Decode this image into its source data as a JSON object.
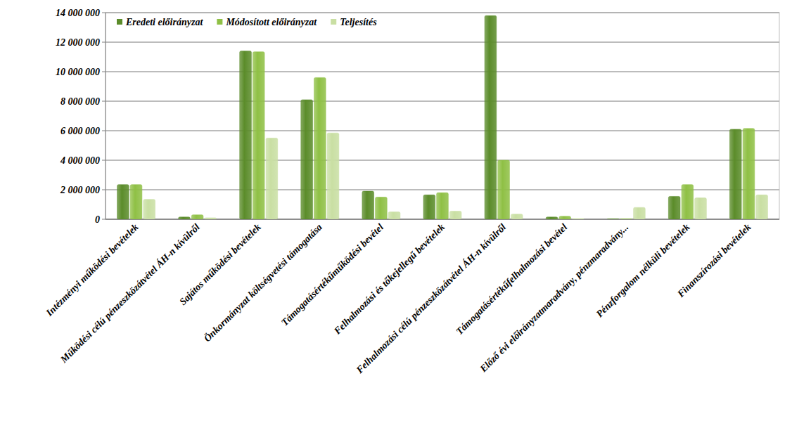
{
  "chart_data": {
    "type": "bar",
    "categories": [
      "Intézményi működési bevételek",
      "Működési célú pénzeszközátvétel ÁH-n kívülről",
      "Sajátos működési bevételek",
      "Önkormányzat költségvetési támogatása",
      "Támogatásértékűműködési bevétel",
      "Felhalmozási és tőkejellegű bevételek",
      "Felhalmozási célú pénzeszközátvétel ÁH-n kívülről",
      "Támogatásértékűfelhalmozási bevétel",
      "Előző évi előirányzatmaradvány, pénzmaradvány...",
      "Pénzforgalom nélküli bevételek",
      "Finanszírozási bevételek"
    ],
    "series": [
      {
        "name": "Eredeti előirányzat",
        "color": "#5b8c2a",
        "values": [
          2350000,
          150000,
          11400000,
          8100000,
          1900000,
          1650000,
          13800000,
          150000,
          30000,
          1550000,
          6100000
        ]
      },
      {
        "name": "Módosított előirányzat",
        "color": "#8fc045",
        "values": [
          2350000,
          300000,
          11350000,
          9600000,
          1500000,
          1800000,
          4000000,
          200000,
          30000,
          2350000,
          6150000
        ]
      },
      {
        "name": "Teljesítés",
        "color": "#c9dfa3",
        "values": [
          1350000,
          100000,
          5500000,
          5850000,
          500000,
          550000,
          350000,
          50000,
          800000,
          1450000,
          1650000
        ]
      }
    ],
    "ylim": [
      0,
      14000000
    ],
    "yticks": [
      0,
      {
        "value": 2000000,
        "label": "2 000 000"
      },
      {
        "value": 4000000,
        "label": "4 000 000"
      },
      {
        "value": 6000000,
        "label": "6 000 000"
      },
      {
        "value": 8000000,
        "label": "8 000 000"
      },
      {
        "value": 10000000,
        "label": "10 000 000"
      },
      {
        "value": 12000000,
        "label": "12 000 000"
      },
      {
        "value": 14000000,
        "label": "14 000 000"
      }
    ],
    "grid": true,
    "legend": "top-left"
  }
}
